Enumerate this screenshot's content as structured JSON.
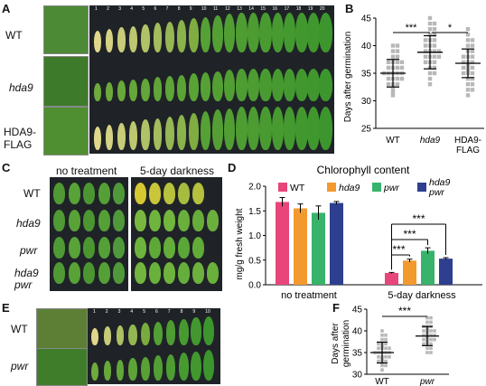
{
  "panel_labels": [
    "A",
    "B",
    "C",
    "D",
    "E",
    "F"
  ],
  "panelA": {
    "genotypes": [
      "WT",
      "hda9",
      "HDA9-\nFLAG"
    ],
    "genotype_lines": [
      [
        "WT"
      ],
      [
        "hda9"
      ],
      [
        "HDA9-",
        "FLAG"
      ]
    ],
    "leaf_numbers": [
      "1",
      "2",
      "3",
      "4",
      "5",
      "6",
      "7",
      "8",
      "9",
      "10",
      "11",
      "12",
      "13",
      "14",
      "15",
      "16",
      "17",
      "18",
      "19",
      "20"
    ]
  },
  "panelB": {
    "ylabel": "Days after germination",
    "yticks": [
      "25",
      "30",
      "35",
      "40",
      "45"
    ],
    "categories": [
      "WT",
      "hda9",
      "HDA9-\nFLAG"
    ],
    "cat1": "WT",
    "cat2": "hda9",
    "cat3a": "HDA9-",
    "cat3b": "FLAG",
    "sig1": "***",
    "sig2": "*"
  },
  "panelC": {
    "headers": [
      "no treatment",
      "5-day darkness"
    ],
    "genotypes": [
      "WT",
      "hda9",
      "pwr",
      "hda9\npwr"
    ],
    "g1": "WT",
    "g2": "hda9",
    "g3": "pwr",
    "g4a": "hda9",
    "g4b": "pwr"
  },
  "panelD": {
    "title": "Chlorophyll content",
    "ylabel": "mg/g fresh weight",
    "yticks": [
      "0.0",
      "0.5",
      "1.0",
      "1.5",
      "2.0"
    ],
    "groups": [
      "no treatment",
      "5-day darkness"
    ],
    "legend": [
      "WT",
      "hda9",
      "pwr",
      "hda9\npwr"
    ],
    "sig": [
      "***",
      "***",
      "***"
    ]
  },
  "panelE": {
    "genotypes": [
      "WT",
      "pwr"
    ],
    "leaf_numbers": [
      "1",
      "2",
      "3",
      "4",
      "5",
      "6",
      "7",
      "8",
      "9",
      "10"
    ]
  },
  "panelF": {
    "ylabel": "Days after\ngermination",
    "ylabel1": "Days after",
    "ylabel2": "germination",
    "yticks": [
      "30",
      "35",
      "40",
      "45"
    ],
    "categories": [
      "WT",
      "pwr"
    ],
    "sig": "***"
  },
  "colors": {
    "WT": "#e8457a",
    "hda9": "#f39a2e",
    "pwr": "#37b36b",
    "hda9pwr": "#2e3f8f",
    "scatter": "#b8b8b8",
    "photo_bg": "#1f2327"
  },
  "chart_data": [
    {
      "type": "scatter",
      "panel": "B",
      "ylabel": "Days after germination",
      "ylim": [
        25,
        45
      ],
      "categories": [
        "WT",
        "hda9",
        "HDA9-FLAG"
      ],
      "means": [
        35.0,
        38.8,
        36.8
      ],
      "sd": [
        2.5,
        3.0,
        2.6
      ],
      "significance": [
        {
          "pair": [
            "WT",
            "hda9"
          ],
          "label": "***"
        },
        {
          "pair": [
            "hda9",
            "HDA9-FLAG"
          ],
          "label": "*"
        }
      ],
      "points": [
        [
          31,
          32,
          33,
          33,
          33,
          34,
          34,
          34,
          34,
          35,
          35,
          35,
          35,
          35,
          36,
          36,
          36,
          36,
          37,
          37,
          37,
          37,
          38,
          38,
          39,
          39,
          40,
          40,
          31.5,
          32.5
        ],
        [
          33,
          34,
          35,
          35,
          36,
          36,
          37,
          37,
          37,
          38,
          38,
          38,
          38,
          39,
          39,
          39,
          39,
          40,
          40,
          40,
          41,
          41,
          41,
          42,
          42,
          43,
          43,
          44,
          44,
          45
        ],
        [
          31,
          32,
          32,
          33,
          33,
          34,
          34,
          35,
          35,
          35,
          36,
          36,
          36,
          37,
          37,
          37,
          38,
          38,
          38,
          39,
          39,
          40,
          40,
          41,
          41,
          42,
          43,
          35.5,
          36.5
        ]
      ]
    },
    {
      "type": "bar",
      "panel": "D",
      "title": "Chlorophyll content",
      "ylabel": "mg/g fresh weight",
      "ylim": [
        0,
        2.0
      ],
      "categories": [
        "no treatment",
        "5-day darkness"
      ],
      "series": [
        {
          "name": "WT",
          "values": [
            1.68,
            0.24
          ],
          "err": [
            0.09,
            0.01
          ]
        },
        {
          "name": "hda9",
          "values": [
            1.55,
            0.49
          ],
          "err": [
            0.09,
            0.03
          ]
        },
        {
          "name": "pwr",
          "values": [
            1.46,
            0.69
          ],
          "err": [
            0.14,
            0.06
          ]
        },
        {
          "name": "hda9 pwr",
          "values": [
            1.66,
            0.53
          ],
          "err": [
            0.03,
            0.02
          ]
        }
      ]
    },
    {
      "type": "scatter",
      "panel": "F",
      "ylabel": "Days after germination",
      "ylim": [
        30,
        45
      ],
      "categories": [
        "WT",
        "pwr"
      ],
      "means": [
        35.0,
        38.8
      ],
      "sd": [
        2.4,
        2.2
      ],
      "significance": [
        {
          "pair": [
            "WT",
            "pwr"
          ],
          "label": "***"
        }
      ],
      "points": [
        [
          31,
          32,
          32,
          33,
          33,
          33,
          34,
          34,
          34,
          34,
          35,
          35,
          35,
          35,
          35,
          36,
          36,
          36,
          36,
          37,
          37,
          37,
          38,
          38,
          39,
          39,
          40,
          32.5,
          33.5,
          36.5
        ],
        [
          35,
          35,
          36,
          36,
          37,
          37,
          37,
          38,
          38,
          38,
          38,
          39,
          39,
          39,
          39,
          40,
          40,
          40,
          40,
          41,
          41,
          41,
          42,
          42,
          43,
          43,
          37.5,
          38.5,
          39.5,
          40.5
        ]
      ]
    }
  ]
}
